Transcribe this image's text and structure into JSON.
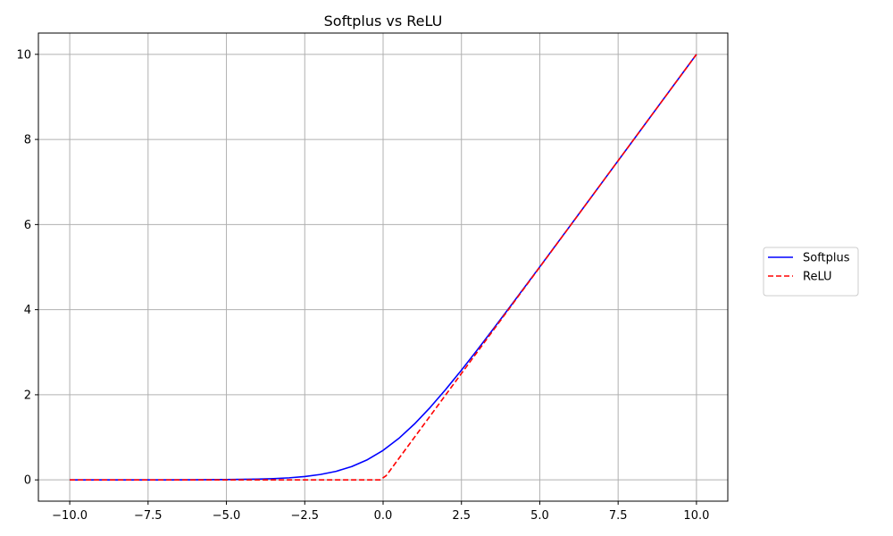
{
  "chart_data": {
    "type": "line",
    "title": "Softplus vs ReLU",
    "xlabel": "",
    "ylabel": "",
    "xlim": [
      -11.0,
      11.0
    ],
    "ylim": [
      -0.5,
      10.5
    ],
    "grid": true,
    "legend_position": "right",
    "x_ticks": [
      -10.0,
      -7.5,
      -5.0,
      -2.5,
      0.0,
      2.5,
      5.0,
      7.5,
      10.0
    ],
    "x_tick_labels": [
      "−10.0",
      "−7.5",
      "−5.0",
      "−2.5",
      "0.0",
      "2.5",
      "5.0",
      "7.5",
      "10.0"
    ],
    "y_ticks": [
      0,
      2,
      4,
      6,
      8,
      10
    ],
    "y_tick_labels": [
      "0",
      "2",
      "4",
      "6",
      "8",
      "10"
    ],
    "series": [
      {
        "name": "Softplus",
        "color": "#0000ff",
        "line_style": "solid",
        "x": [
          -10,
          -9,
          -8,
          -7,
          -6,
          -5,
          -4,
          -3.5,
          -3,
          -2.5,
          -2,
          -1.5,
          -1,
          -0.5,
          0,
          0.5,
          1,
          1.5,
          2,
          2.5,
          3,
          3.5,
          4,
          5,
          6,
          7,
          8,
          9,
          10
        ],
        "y": [
          4.54e-05,
          0.000123,
          0.000335,
          0.000911,
          0.00248,
          0.00672,
          0.0181,
          0.0298,
          0.0486,
          0.0789,
          0.127,
          0.201,
          0.313,
          0.474,
          0.693,
          0.974,
          1.313,
          1.701,
          2.127,
          2.579,
          3.049,
          3.53,
          4.018,
          5.007,
          6.002,
          7.001,
          8.0,
          9.0,
          10.0
        ]
      },
      {
        "name": "ReLU",
        "color": "#ff0000",
        "line_style": "dashed",
        "x": [
          -10,
          -0.1,
          0.1,
          10
        ],
        "y": [
          0,
          0,
          0.1,
          10
        ]
      }
    ]
  }
}
